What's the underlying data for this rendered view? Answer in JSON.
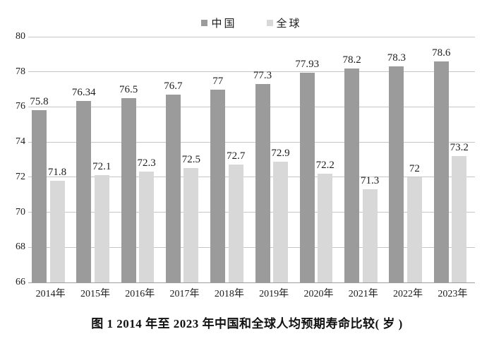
{
  "chart_data": {
    "type": "bar",
    "title": "图 1  2014 年至 2023 年中国和全球人均预期寿命比较( 岁 )",
    "categories": [
      "2014年",
      "2015年",
      "2016年",
      "2017年",
      "2018年",
      "2019年",
      "2020年",
      "2021年",
      "2022年",
      "2023年"
    ],
    "series": [
      {
        "name": "中国",
        "color": "#9b9b9b",
        "values": [
          75.8,
          76.34,
          76.5,
          76.7,
          77,
          77.3,
          77.93,
          78.2,
          78.3,
          78.6
        ],
        "labels": [
          "75.8",
          "76.34",
          "76.5",
          "76.7",
          "77",
          "77.3",
          "77.93",
          "78.2",
          "78.3",
          "78.6"
        ]
      },
      {
        "name": "全球",
        "color": "#d8d8d8",
        "values": [
          71.8,
          72.1,
          72.3,
          72.5,
          72.7,
          72.9,
          72.2,
          71.3,
          72,
          73.2
        ],
        "labels": [
          "71.8",
          "72.1",
          "72.3",
          "72.5",
          "72.7",
          "72.9",
          "72.2",
          "71.3",
          "72",
          "73.2"
        ]
      }
    ],
    "xlabel": "",
    "ylabel": "",
    "ylim": [
      66,
      80
    ],
    "yticks": [
      66,
      68,
      70,
      72,
      74,
      76,
      78,
      80
    ],
    "grid": true,
    "legend_position": "top"
  },
  "caption": "图 1  2014 年至 2023 年中国和全球人均预期寿命比较( 岁 )",
  "colors": {
    "grid": "#c6c6c6",
    "axis": "#9e9e9e",
    "text": "#1c1c1c"
  }
}
